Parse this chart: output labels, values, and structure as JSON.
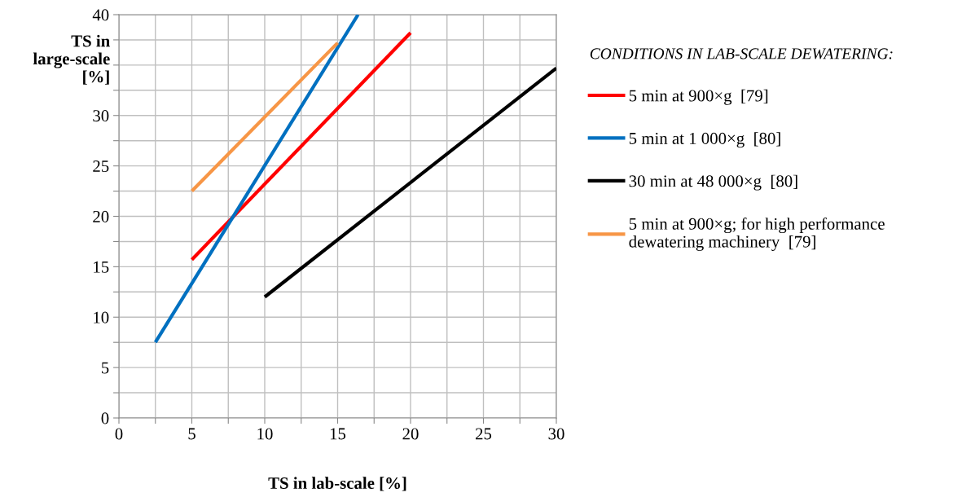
{
  "chart_data": {
    "type": "line",
    "xlabel": "TS in lab-scale [%]",
    "ylabel": "TS in\nlarge-scale\n[%]",
    "legend_title": "CONDITIONS IN LAB-SCALE DEWATERING:",
    "series": [
      {
        "name": "5 min at 900×g  [79]",
        "color": "#ff0000",
        "x": [
          5,
          20
        ],
        "values": [
          15.7,
          38.2
        ]
      },
      {
        "name": "5 min at 1 000×g  [80]",
        "color": "#0070c0",
        "x": [
          2.5,
          16.4
        ],
        "values": [
          7.5,
          40
        ]
      },
      {
        "name": "30 min at 48 000×g  [80]",
        "color": "#000000",
        "x": [
          10,
          30
        ],
        "values": [
          12,
          34.7
        ]
      },
      {
        "name": "5 min at 900×g; for high performance\ndewatering machinery  [79]",
        "color": "#f79646",
        "x": [
          5,
          15
        ],
        "values": [
          22.5,
          37.2
        ]
      }
    ],
    "xlim": [
      0,
      30
    ],
    "xticks": [
      0,
      {
        "value": 2.5,
        "label": null
      },
      5,
      {
        "value": 7.5,
        "label": null
      },
      10,
      {
        "value": 12.5,
        "label": null
      },
      15,
      {
        "value": 17.5,
        "label": null
      },
      20,
      {
        "value": 22.5,
        "label": null
      },
      25,
      {
        "value": 27.5,
        "label": null
      },
      30
    ],
    "ylim": [
      0,
      40
    ],
    "yticks": [
      0,
      {
        "value": 2.5,
        "label": null
      },
      5,
      {
        "value": 7.5,
        "label": null
      },
      10,
      {
        "value": 12.5,
        "label": null
      },
      15,
      {
        "value": 17.5,
        "label": null
      },
      20,
      {
        "value": 22.5,
        "label": null
      },
      25,
      {
        "value": 27.5,
        "label": null
      },
      30,
      {
        "value": 32.5,
        "label": null
      },
      {
        "value": 35,
        "label": null
      },
      {
        "value": 37.5,
        "label": null
      },
      40
    ],
    "grid": true,
    "legend": "right",
    "marker": "none",
    "line_style": "solid"
  }
}
